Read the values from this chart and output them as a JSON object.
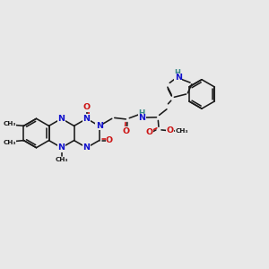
{
  "bg_color": "#e8e8e8",
  "bond_color": "#1a1a1a",
  "n_color": "#1111cc",
  "o_color": "#cc1111",
  "h_color": "#3a8888",
  "lw": 1.15,
  "fs": 6.8,
  "fss": 5.2,
  "R": 0.54,
  "xlim": [
    0,
    10
  ],
  "ylim": [
    2,
    8
  ]
}
